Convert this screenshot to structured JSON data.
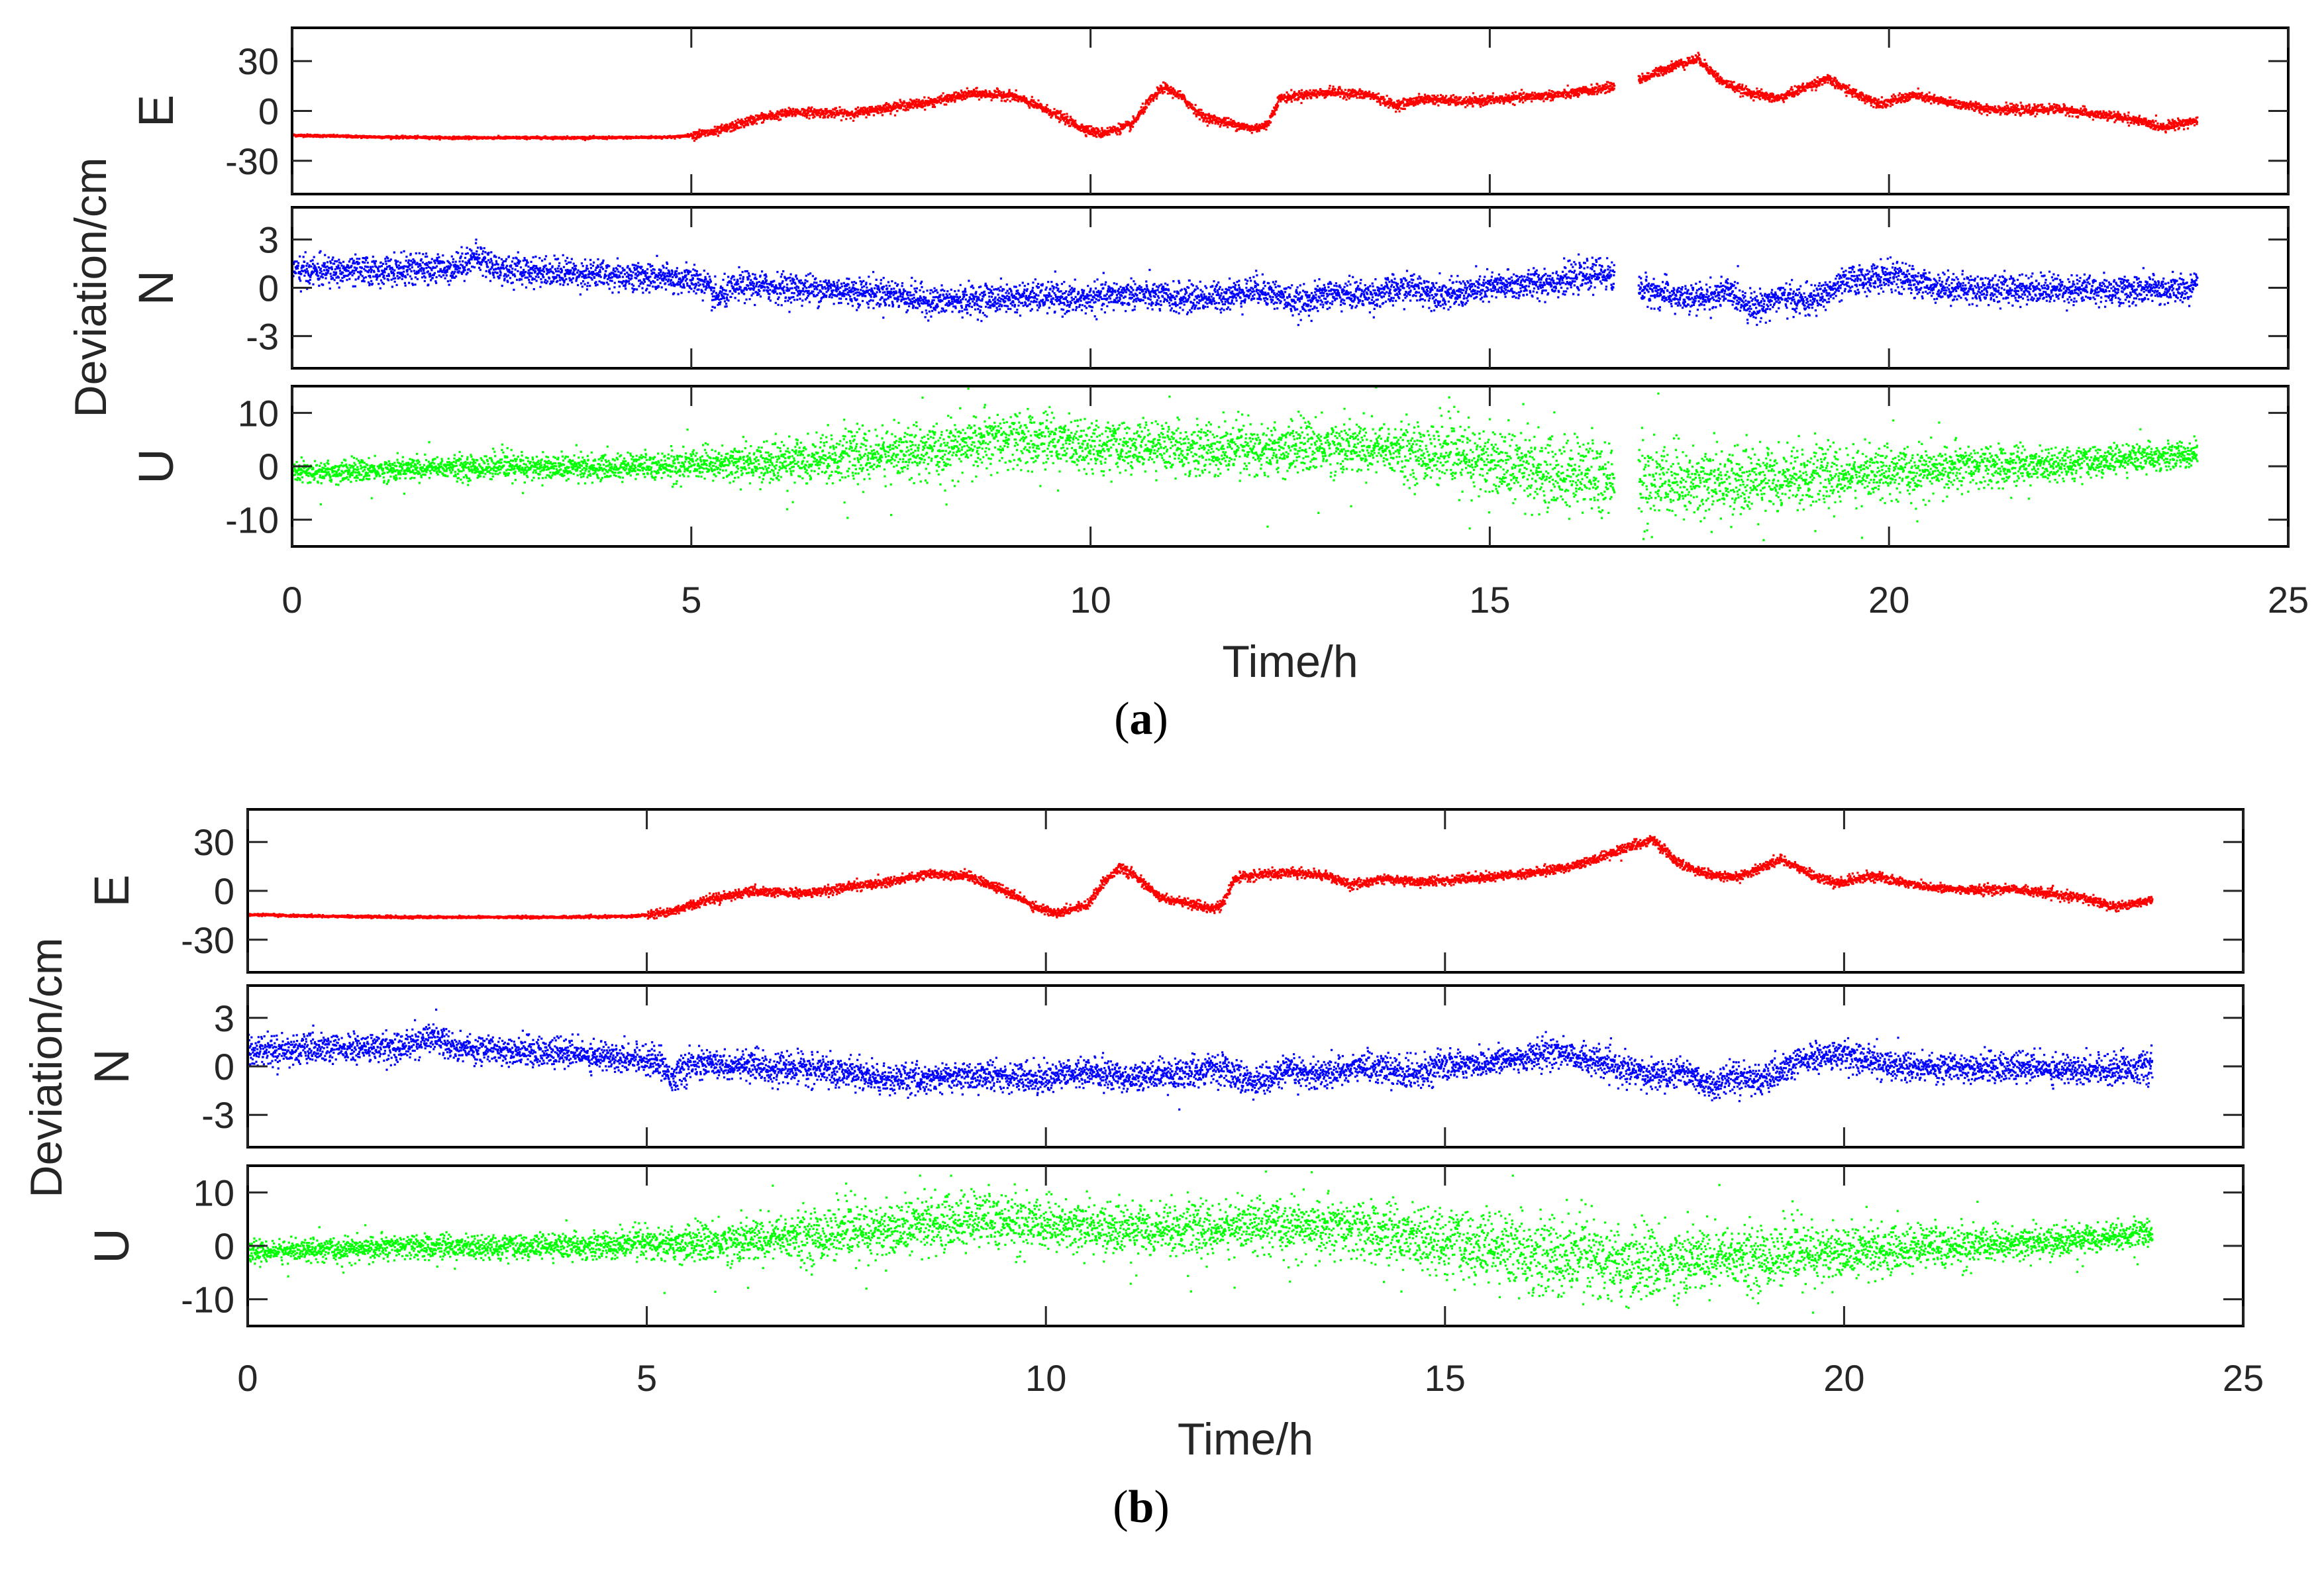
{
  "colors": {
    "E": "#ff0000",
    "N": "#0000ff",
    "U": "#00ff00",
    "axis": "#262626"
  },
  "chart_data": [
    {
      "type": "scatter",
      "panel": "a",
      "caption_letter": "a",
      "caption_open": "(",
      "caption_close": ")",
      "xlabel": "Time/h",
      "ylabel": "Deviation/cm",
      "xlim": [
        0,
        25
      ],
      "xticks": [
        "0",
        "5",
        "10",
        "15",
        "20",
        "25"
      ],
      "gap_hours": [
        16.55,
        16.85
      ],
      "subplots": [
        {
          "name": "E",
          "ylim": [
            -50,
            50
          ],
          "yticks": [
            "30",
            "0",
            "-30"
          ],
          "ytick_values": [
            30,
            0,
            -30
          ],
          "noise": 1.4,
          "t": [
            0,
            1,
            2,
            3,
            4,
            4.8,
            5.3,
            5.8,
            6.3,
            7.0,
            7.5,
            8.0,
            8.5,
            9.0,
            9.4,
            9.7,
            9.85,
            10.1,
            10.5,
            10.7,
            10.9,
            11.1,
            11.4,
            12.0,
            12.2,
            12.35,
            12.6,
            13.0,
            13.5,
            13.8,
            14.2,
            14.7,
            15.2,
            16.0,
            16.5,
            16.9,
            17.3,
            17.6,
            17.9,
            18.2,
            18.6,
            18.9,
            19.2,
            19.6,
            19.9,
            20.3,
            20.7,
            21.2,
            21.7,
            22.1,
            22.5,
            23.0,
            23.4,
            23.85
          ],
          "v": [
            -14,
            -15,
            -15.5,
            -15.5,
            -15.5,
            -15,
            -12,
            -4,
            0,
            -1,
            3,
            6,
            11,
            10,
            2,
            -5,
            -9,
            -13,
            -8,
            5,
            15,
            10,
            -3,
            -10,
            -8,
            8,
            10,
            12,
            10,
            4,
            8,
            6,
            8,
            11,
            15,
            20,
            28,
            32,
            18,
            12,
            8,
            14,
            20,
            10,
            5,
            10,
            6,
            2,
            1,
            2,
            -1,
            -4,
            -9,
            -5
          ]
        },
        {
          "name": "N",
          "ylim": [
            -5,
            5
          ],
          "yticks": [
            "3",
            "0",
            "-3"
          ],
          "ytick_values": [
            3,
            0,
            -3
          ],
          "noise": 0.45,
          "t": [
            0,
            1,
            2,
            2.3,
            2.6,
            3.5,
            4.5,
            5.1,
            5.3,
            5.6,
            6.5,
            7.5,
            8.0,
            8.8,
            9.5,
            9.8,
            10.5,
            11,
            11.6,
            12.1,
            12.6,
            13.0,
            13.5,
            14.0,
            14.5,
            15,
            15.5,
            16.0,
            16.4,
            16.9,
            17.5,
            18.0,
            18.3,
            18.6,
            19.0,
            19.5,
            20,
            20.5,
            21,
            22,
            23,
            23.85
          ],
          "v": [
            1.1,
            1.1,
            1.3,
            2.0,
            1.2,
            1.0,
            0.7,
            0.5,
            -0.6,
            0.2,
            0,
            -0.3,
            -0.8,
            -0.6,
            -0.5,
            -0.7,
            -0.3,
            -0.6,
            -0.5,
            0,
            -0.9,
            -0.3,
            -0.4,
            0.1,
            -0.4,
            0.1,
            0.3,
            0.6,
            1.0,
            0,
            -0.7,
            -0.2,
            -1.2,
            -0.5,
            -0.8,
            0.5,
            0.8,
            0.2,
            0,
            0,
            -0.1,
            0
          ]
        },
        {
          "name": "U",
          "ylim": [
            -15,
            15
          ],
          "yticks": [
            "10",
            "0",
            "-10"
          ],
          "ytick_values": [
            10,
            0,
            -10
          ],
          "noise_t": [
            0,
            4.5,
            7,
            9,
            11,
            14,
            15,
            16.5,
            16.9,
            18.5,
            20,
            22,
            23.85
          ],
          "noise_v": [
            1.0,
            1.2,
            2.4,
            2.6,
            2.3,
            2.6,
            3.2,
            3.6,
            3.6,
            3.0,
            2.4,
            1.6,
            1.1
          ],
          "t": [
            0,
            1,
            2,
            3,
            4,
            5,
            6,
            7,
            8,
            8.5,
            9,
            9.5,
            10,
            11,
            12,
            12.5,
            13,
            14,
            15,
            16,
            16.5,
            16.9,
            17.5,
            18,
            18.5,
            19,
            19.5,
            20,
            21,
            22,
            23,
            23.85
          ],
          "v": [
            -1,
            -0.5,
            0,
            0,
            0,
            0.5,
            1,
            2,
            3,
            4.5,
            5,
            5,
            4,
            3.5,
            3,
            4,
            4,
            3,
            1,
            -1.5,
            -2,
            -2.5,
            -3,
            -2.5,
            -2,
            -2,
            -1.5,
            -1,
            0,
            0.5,
            1.5,
            2.5
          ]
        }
      ]
    },
    {
      "type": "scatter",
      "panel": "b",
      "caption_letter": "b",
      "caption_open": "(",
      "caption_close": ")",
      "xlabel": "Time/h",
      "ylabel": "Deviation/cm",
      "xlim": [
        0,
        25
      ],
      "xticks": [
        "0",
        "5",
        "10",
        "15",
        "20",
        "25"
      ],
      "gap_hours": [],
      "subplots": [
        {
          "name": "E",
          "ylim": [
            -50,
            50
          ],
          "yticks": [
            "30",
            "0",
            "-30"
          ],
          "ytick_values": [
            30,
            0,
            -30
          ],
          "noise": 1.4,
          "t": [
            0,
            1,
            2,
            3,
            4,
            4.8,
            5.3,
            5.8,
            6.3,
            7.0,
            7.5,
            8.0,
            8.5,
            9.0,
            9.4,
            9.7,
            9.85,
            10.1,
            10.5,
            10.7,
            10.9,
            11.1,
            11.4,
            12.0,
            12.2,
            12.35,
            12.6,
            13.0,
            13.5,
            13.8,
            14.2,
            14.7,
            15.2,
            16.0,
            16.5,
            16.9,
            17.3,
            17.6,
            17.9,
            18.2,
            18.6,
            18.9,
            19.2,
            19.6,
            19.9,
            20.3,
            20.7,
            21.2,
            21.7,
            22.1,
            22.5,
            23.0,
            23.4,
            23.85
          ],
          "v": [
            -14,
            -15,
            -15.5,
            -15.5,
            -15.5,
            -15,
            -12,
            -4,
            0,
            -1,
            3,
            6,
            11,
            10,
            2,
            -5,
            -9,
            -13,
            -8,
            5,
            15,
            10,
            -3,
            -10,
            -8,
            8,
            10,
            12,
            10,
            4,
            8,
            6,
            8,
            11,
            15,
            20,
            28,
            32,
            18,
            12,
            8,
            14,
            20,
            10,
            5,
            10,
            6,
            2,
            1,
            2,
            -1,
            -4,
            -9,
            -5
          ]
        },
        {
          "name": "N",
          "ylim": [
            -5,
            5
          ],
          "yticks": [
            "3",
            "0",
            "-3"
          ],
          "ytick_values": [
            3,
            0,
            -3
          ],
          "noise": 0.45,
          "t": [
            0,
            1,
            2,
            2.3,
            2.6,
            3.5,
            4.5,
            5.1,
            5.3,
            5.6,
            6.5,
            7.5,
            8.0,
            8.8,
            9.5,
            9.8,
            10.5,
            11,
            11.6,
            12.1,
            12.6,
            13.0,
            13.5,
            14.0,
            14.5,
            15,
            15.5,
            16.0,
            16.4,
            16.9,
            17.5,
            18.0,
            18.3,
            18.6,
            19.0,
            19.5,
            20,
            20.5,
            21,
            22,
            23,
            23.85
          ],
          "v": [
            1.1,
            1.1,
            1.3,
            2.0,
            1.2,
            1.0,
            0.7,
            0.5,
            -0.6,
            0.2,
            0,
            -0.3,
            -0.8,
            -0.6,
            -0.5,
            -0.7,
            -0.3,
            -0.6,
            -0.5,
            0,
            -0.9,
            -0.3,
            -0.4,
            0.1,
            -0.4,
            0.1,
            0.3,
            0.6,
            1.0,
            0.3,
            -0.5,
            -0.2,
            -1.2,
            -0.5,
            -0.8,
            0.5,
            0.8,
            0.2,
            0,
            0,
            -0.1,
            0
          ]
        },
        {
          "name": "U",
          "ylim": [
            -15,
            15
          ],
          "yticks": [
            "10",
            "0",
            "-10"
          ],
          "ytick_values": [
            10,
            0,
            -10
          ],
          "noise_t": [
            0,
            4.5,
            7,
            9,
            11,
            14,
            15,
            16.5,
            16.9,
            18.5,
            20,
            22,
            23.85
          ],
          "noise_v": [
            1.0,
            1.2,
            2.4,
            2.6,
            2.3,
            2.6,
            3.2,
            3.6,
            3.6,
            3.0,
            2.4,
            1.6,
            1.1
          ],
          "t": [
            0,
            1,
            2,
            3,
            4,
            5,
            6,
            7,
            8,
            8.5,
            9,
            9.5,
            10,
            11,
            12,
            12.5,
            13,
            14,
            15,
            16,
            16.5,
            16.9,
            17.5,
            18,
            18.5,
            19,
            19.5,
            20,
            21,
            22,
            23,
            23.85
          ],
          "v": [
            -1,
            -0.5,
            0,
            0,
            0,
            0.5,
            1,
            2,
            3,
            4.5,
            5,
            5,
            4,
            3.5,
            3,
            4,
            4,
            3,
            1,
            -1.5,
            -2,
            -2.5,
            -3,
            -2.5,
            -2,
            -2,
            -1.5,
            -1,
            0,
            0.5,
            1.5,
            2.5
          ]
        }
      ]
    }
  ]
}
